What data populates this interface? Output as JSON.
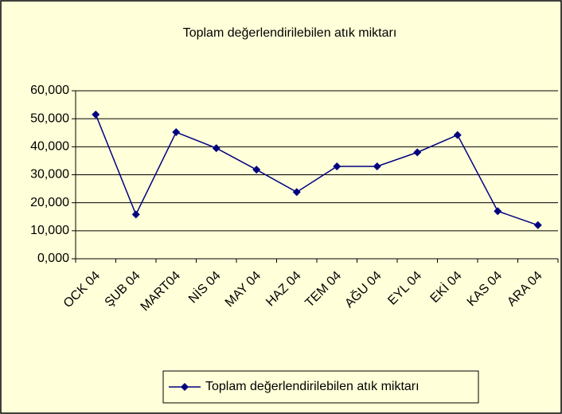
{
  "chart_data": {
    "type": "line",
    "title": "Toplam değerlendirilebilen  atık miktarı",
    "categories": [
      "OCK 04",
      "ŞUB 04",
      "MART04",
      "NİS 04",
      "MAY 04",
      "HAZ 04",
      "TEM 04",
      "AĞU 04",
      "EYL 04",
      "EKİ 04",
      "KAS 04",
      "ARA 04"
    ],
    "series": [
      {
        "name": "Toplam değerlendirilebilen  atık miktarı",
        "color": "#000080",
        "values": [
          51500,
          15800,
          45200,
          39500,
          31800,
          23800,
          33000,
          33000,
          38000,
          44200,
          17000,
          12000
        ]
      }
    ],
    "ylim": [
      0,
      60000
    ],
    "yticks": [
      {
        "value": 0,
        "label": "0,000"
      },
      {
        "value": 10000,
        "label": "10,000"
      },
      {
        "value": 20000,
        "label": "20,000"
      },
      {
        "value": 30000,
        "label": "30,000"
      },
      {
        "value": 40000,
        "label": "40,000"
      },
      {
        "value": 50000,
        "label": "50,000"
      },
      {
        "value": 60000,
        "label": "60,000"
      }
    ],
    "grid": true
  }
}
